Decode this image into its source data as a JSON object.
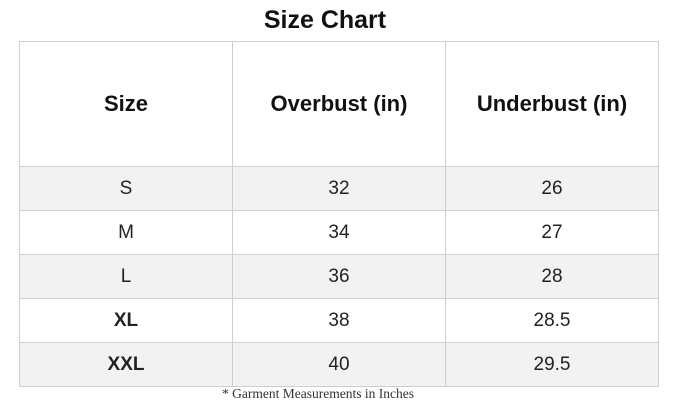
{
  "title": "Size Chart",
  "headers": [
    "Size",
    "Overbust (in)",
    "Underbust (in)"
  ],
  "rows": [
    {
      "size": "S",
      "overbust": "32",
      "underbust": "26"
    },
    {
      "size": "M",
      "overbust": "34",
      "underbust": "27"
    },
    {
      "size": "L",
      "overbust": "36",
      "underbust": "28"
    },
    {
      "size": "XL",
      "overbust": "38",
      "underbust": "28.5"
    },
    {
      "size": "XXL",
      "overbust": "40",
      "underbust": "29.5"
    }
  ],
  "footnote": "* Garment Measurements in Inches",
  "colors": {
    "alt_row": "#f2f2f2",
    "border": "#cfcfcf"
  }
}
